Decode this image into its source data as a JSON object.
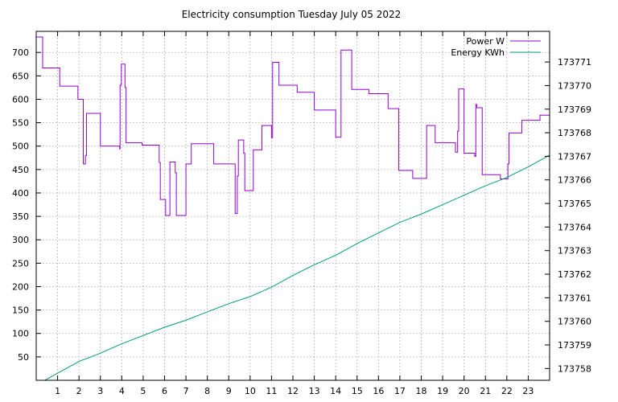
{
  "chart_data": {
    "type": "line",
    "title": "Electricity consumption Tuesday July 05 2022",
    "xlabel": "",
    "x_ticks": [
      "1",
      "2",
      "3",
      "4",
      "5",
      "6",
      "7",
      "8",
      "9",
      "10",
      "11",
      "12",
      "13",
      "14",
      "15",
      "16",
      "17",
      "18",
      "19",
      "20",
      "21",
      "22",
      "23"
    ],
    "xlim": [
      0,
      24
    ],
    "y_left_ticks": [
      "50",
      "100",
      "150",
      "200",
      "250",
      "300",
      "350",
      "400",
      "450",
      "500",
      "550",
      "600",
      "650",
      "700"
    ],
    "ylim_left": [
      0,
      745
    ],
    "y_right_ticks": [
      "173758",
      "173759",
      "173760",
      "173761",
      "173762",
      "173763",
      "173764",
      "173765",
      "173766",
      "173767",
      "173768",
      "173769",
      "173770",
      "173771"
    ],
    "ylim_right": [
      173757.5,
      173772.3
    ],
    "grid": true,
    "legend_position": "top-right",
    "series": [
      {
        "name": "Power W",
        "axis": "left",
        "color": "#9400d3",
        "step": true,
        "points": [
          [
            0.0,
            733
          ],
          [
            0.3,
            733
          ],
          [
            0.3,
            667
          ],
          [
            1.1,
            667
          ],
          [
            1.1,
            628
          ],
          [
            1.95,
            628
          ],
          [
            1.95,
            600
          ],
          [
            2.2,
            600
          ],
          [
            2.2,
            462
          ],
          [
            2.3,
            462
          ],
          [
            2.3,
            480
          ],
          [
            2.35,
            480
          ],
          [
            2.35,
            570
          ],
          [
            3.0,
            570
          ],
          [
            3.0,
            500
          ],
          [
            3.9,
            500
          ],
          [
            3.9,
            494
          ],
          [
            3.92,
            494
          ],
          [
            3.92,
            630
          ],
          [
            3.98,
            630
          ],
          [
            3.98,
            675
          ],
          [
            4.15,
            675
          ],
          [
            4.15,
            625
          ],
          [
            4.2,
            625
          ],
          [
            4.2,
            507
          ],
          [
            4.95,
            507
          ],
          [
            4.95,
            502
          ],
          [
            5.75,
            502
          ],
          [
            5.75,
            465
          ],
          [
            5.8,
            465
          ],
          [
            5.8,
            386
          ],
          [
            6.05,
            386
          ],
          [
            6.05,
            352
          ],
          [
            6.25,
            352
          ],
          [
            6.25,
            466
          ],
          [
            6.5,
            466
          ],
          [
            6.5,
            443
          ],
          [
            6.55,
            443
          ],
          [
            6.55,
            352
          ],
          [
            7.0,
            352
          ],
          [
            7.0,
            462
          ],
          [
            7.25,
            462
          ],
          [
            7.25,
            505
          ],
          [
            8.3,
            505
          ],
          [
            8.3,
            462
          ],
          [
            9.3,
            462
          ],
          [
            9.3,
            356
          ],
          [
            9.4,
            356
          ],
          [
            9.4,
            436
          ],
          [
            9.45,
            436
          ],
          [
            9.45,
            513
          ],
          [
            9.7,
            513
          ],
          [
            9.7,
            485
          ],
          [
            9.75,
            485
          ],
          [
            9.75,
            405
          ],
          [
            10.15,
            405
          ],
          [
            10.15,
            492
          ],
          [
            10.55,
            492
          ],
          [
            10.55,
            544
          ],
          [
            11.0,
            544
          ],
          [
            11.0,
            518
          ],
          [
            11.05,
            518
          ],
          [
            11.05,
            679
          ],
          [
            11.35,
            679
          ],
          [
            11.35,
            630
          ],
          [
            12.2,
            630
          ],
          [
            12.2,
            615
          ],
          [
            13.0,
            615
          ],
          [
            13.0,
            577
          ],
          [
            14.0,
            577
          ],
          [
            14.0,
            519
          ],
          [
            14.25,
            519
          ],
          [
            14.25,
            705
          ],
          [
            14.75,
            705
          ],
          [
            14.75,
            621
          ],
          [
            15.55,
            621
          ],
          [
            15.55,
            612
          ],
          [
            16.45,
            612
          ],
          [
            16.45,
            580
          ],
          [
            16.95,
            580
          ],
          [
            16.95,
            448
          ],
          [
            17.6,
            448
          ],
          [
            17.6,
            431
          ],
          [
            18.25,
            431
          ],
          [
            18.25,
            544
          ],
          [
            18.65,
            544
          ],
          [
            18.65,
            507
          ],
          [
            19.6,
            507
          ],
          [
            19.6,
            487
          ],
          [
            19.7,
            487
          ],
          [
            19.7,
            532
          ],
          [
            19.75,
            532
          ],
          [
            19.75,
            622
          ],
          [
            20.0,
            622
          ],
          [
            20.0,
            485
          ],
          [
            20.5,
            485
          ],
          [
            20.5,
            478
          ],
          [
            20.55,
            478
          ],
          [
            20.55,
            589
          ],
          [
            20.6,
            589
          ],
          [
            20.6,
            582
          ],
          [
            20.85,
            582
          ],
          [
            20.85,
            439
          ],
          [
            21.7,
            439
          ],
          [
            21.7,
            430
          ],
          [
            22.05,
            430
          ],
          [
            22.05,
            462
          ],
          [
            22.1,
            462
          ],
          [
            22.1,
            528
          ],
          [
            22.7,
            528
          ],
          [
            22.7,
            555
          ],
          [
            23.55,
            555
          ],
          [
            23.55,
            566
          ],
          [
            24.0,
            566
          ]
        ]
      },
      {
        "name": "Energy KWh",
        "axis": "right",
        "color": "#009e73",
        "step": false,
        "points": [
          [
            0.4,
            173757.5
          ],
          [
            1.0,
            173757.8
          ],
          [
            2.0,
            173758.3
          ],
          [
            3.0,
            173758.65
          ],
          [
            4.0,
            173759.05
          ],
          [
            5.0,
            173759.4
          ],
          [
            6.0,
            173759.75
          ],
          [
            7.0,
            173760.05
          ],
          [
            8.0,
            173760.4
          ],
          [
            9.0,
            173760.75
          ],
          [
            10.0,
            173761.05
          ],
          [
            11.0,
            173761.45
          ],
          [
            12.0,
            173761.95
          ],
          [
            13.0,
            173762.4
          ],
          [
            14.0,
            173762.8
          ],
          [
            15.0,
            173763.3
          ],
          [
            16.0,
            173763.75
          ],
          [
            17.0,
            173764.2
          ],
          [
            18.0,
            173764.55
          ],
          [
            19.0,
            173764.95
          ],
          [
            20.0,
            173765.35
          ],
          [
            21.0,
            173765.75
          ],
          [
            22.0,
            173766.1
          ],
          [
            23.0,
            173766.55
          ],
          [
            24.0,
            173767.05
          ]
        ]
      }
    ]
  }
}
